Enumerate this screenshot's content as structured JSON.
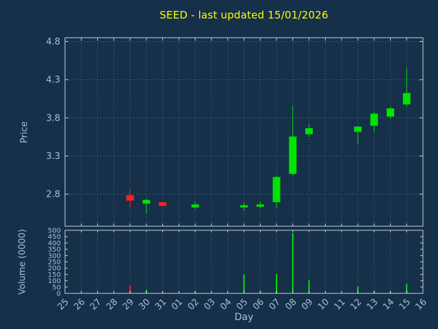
{
  "colors": {
    "background": "#16304a",
    "title": "#ffff00",
    "axis_text": "#a6c0dc",
    "grid": "#4f7596",
    "border": "#c3d3e2",
    "up": "#00e400",
    "down": "#ff2020"
  },
  "chart_data": {
    "type": "candlestick",
    "title": "SEED - last updated 15/01/2026",
    "xlabel": "Day",
    "ylabel": "Price",
    "ylabel2": "Volume (0000)",
    "grid": "dotted",
    "legend": "none",
    "x_ticks": [
      "25",
      "26",
      "27",
      "28",
      "29",
      "30",
      "31",
      "01",
      "02",
      "03",
      "04",
      "05",
      "06",
      "07",
      "08",
      "09",
      "10",
      "11",
      "12",
      "13",
      "14",
      "15",
      "16"
    ],
    "price_ticks": [
      2.8,
      3.3,
      3.8,
      4.3,
      4.8
    ],
    "price_range": [
      2.38,
      4.85
    ],
    "volume_ticks": [
      500,
      450,
      400,
      350,
      300,
      250,
      200,
      150,
      100,
      50,
      0
    ],
    "volume_range": [
      0,
      500
    ],
    "candles": [
      {
        "day": "29",
        "index": 4,
        "open": 2.78,
        "high": 2.86,
        "low": 2.63,
        "close": 2.72,
        "volume": 60
      },
      {
        "day": "30",
        "index": 5,
        "open": 2.68,
        "high": 2.74,
        "low": 2.55,
        "close": 2.72,
        "volume": 28
      },
      {
        "day": "31",
        "index": 6,
        "open": 2.69,
        "high": 2.7,
        "low": 2.64,
        "close": 2.65,
        "volume": 12
      },
      {
        "day": "02",
        "index": 8,
        "open": 2.63,
        "high": 2.7,
        "low": 2.6,
        "close": 2.66,
        "volume": 14
      },
      {
        "day": "05",
        "index": 11,
        "open": 2.63,
        "high": 2.69,
        "low": 2.58,
        "close": 2.65,
        "volume": 150
      },
      {
        "day": "06",
        "index": 12,
        "open": 2.64,
        "high": 2.7,
        "low": 2.61,
        "close": 2.66,
        "volume": 18
      },
      {
        "day": "07",
        "index": 13,
        "open": 2.7,
        "high": 3.04,
        "low": 2.62,
        "close": 3.02,
        "volume": 152
      },
      {
        "day": "08",
        "index": 14,
        "open": 3.07,
        "high": 3.96,
        "low": 3.04,
        "close": 3.55,
        "volume": 478
      },
      {
        "day": "09",
        "index": 15,
        "open": 3.59,
        "high": 3.71,
        "low": 3.55,
        "close": 3.66,
        "volume": 102
      },
      {
        "day": "12",
        "index": 18,
        "open": 3.62,
        "high": 3.7,
        "low": 3.46,
        "close": 3.68,
        "volume": 55
      },
      {
        "day": "13",
        "index": 19,
        "open": 3.7,
        "high": 3.88,
        "low": 3.61,
        "close": 3.85,
        "volume": 20
      },
      {
        "day": "14",
        "index": 20,
        "open": 3.82,
        "high": 3.95,
        "low": 3.79,
        "close": 3.92,
        "volume": 14
      },
      {
        "day": "15",
        "index": 21,
        "open": 3.98,
        "high": 4.46,
        "low": 3.94,
        "close": 4.12,
        "volume": 76
      }
    ]
  }
}
